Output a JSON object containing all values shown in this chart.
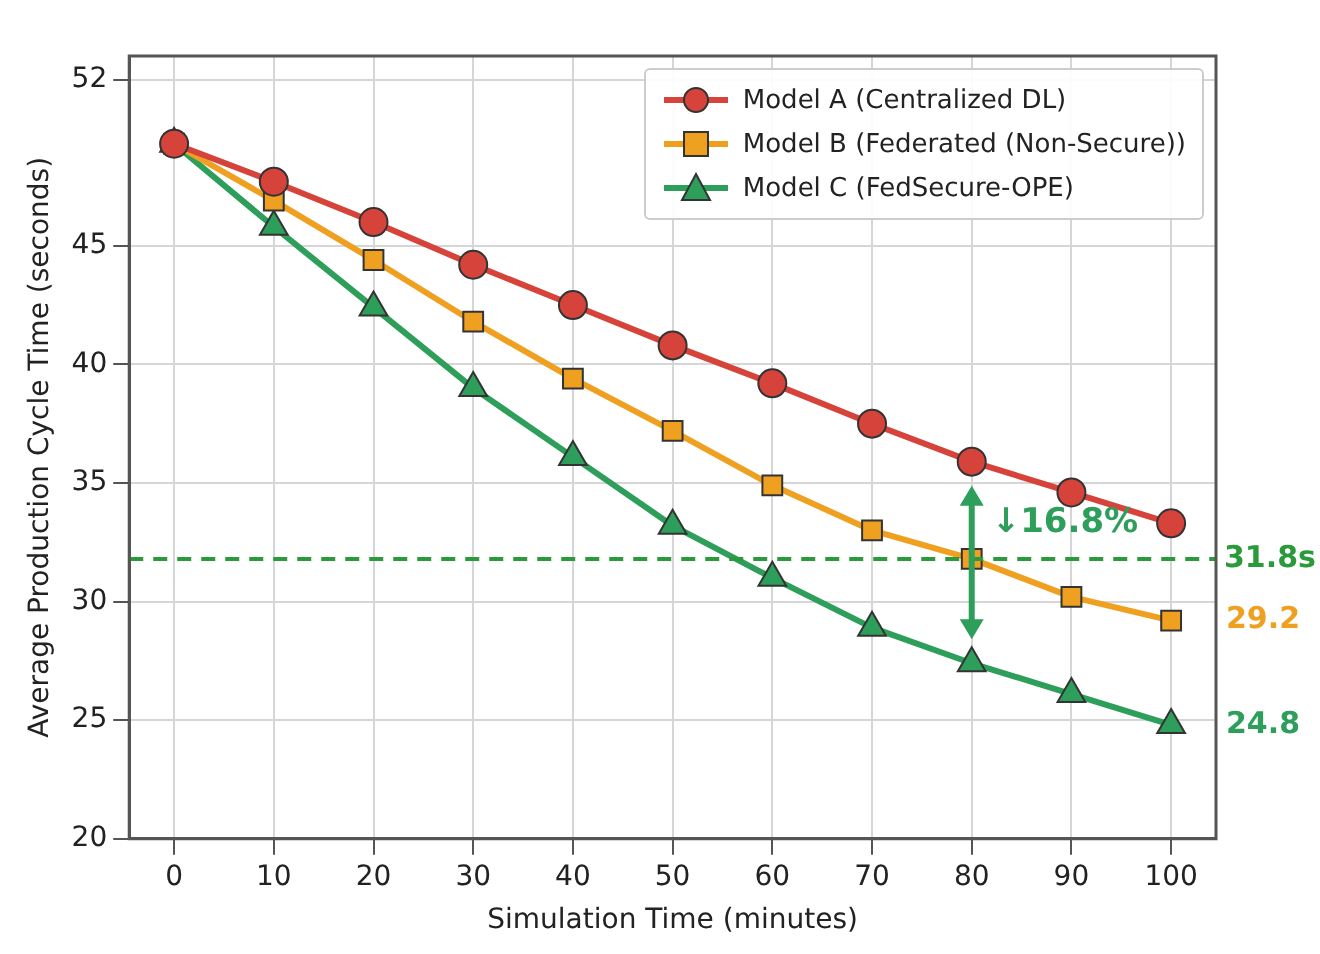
{
  "chart_data": {
    "type": "line",
    "xlabel": "Simulation Time (minutes)",
    "ylabel": "Average Production Cycle Time (seconds)",
    "x": [
      0,
      10,
      20,
      30,
      40,
      50,
      60,
      70,
      80,
      90,
      100
    ],
    "series": [
      {
        "name": "Model A (Centralized DL)",
        "color": "#d6433b",
        "marker": "circle",
        "values": [
          49.3,
          47.7,
          46.0,
          44.2,
          42.5,
          40.8,
          39.2,
          37.5,
          35.9,
          34.6,
          33.3
        ]
      },
      {
        "name": "Model B (Federated (Non-Secure))",
        "color": "#f0a020",
        "marker": "square",
        "values": [
          49.3,
          46.9,
          44.4,
          41.8,
          39.4,
          37.2,
          34.9,
          33.0,
          31.8,
          30.2,
          29.2
        ],
        "value_labels": [
          null,
          null,
          null,
          null,
          null,
          null,
          null,
          null,
          null,
          null,
          "29.2"
        ]
      },
      {
        "name": "Model C (FedSecure-OPE)",
        "color": "#2e9e5b",
        "marker": "triangle",
        "values": [
          49.3,
          45.8,
          42.4,
          39.0,
          36.1,
          33.2,
          31.0,
          28.9,
          27.4,
          26.1,
          24.8
        ],
        "value_labels": [
          null,
          null,
          null,
          null,
          null,
          null,
          null,
          null,
          null,
          null,
          "24.8"
        ]
      }
    ],
    "xlim": [
      -4.5,
      104.5
    ],
    "xticks": [
      0,
      10,
      20,
      30,
      40,
      50,
      60,
      70,
      80,
      90,
      100
    ],
    "ylim": [
      20,
      53
    ],
    "yticks": [
      20,
      25,
      30,
      35,
      40,
      45,
      52
    ],
    "ref_lines": [
      {
        "axis": "y",
        "value": 31.8,
        "label": "31.8s",
        "color": "#2a9a3a",
        "line_style": "dashed"
      }
    ],
    "annotations": [
      {
        "text": "↓16.8%",
        "x": 80,
        "y": 31.8
      }
    ],
    "grid": true,
    "legend": "top right",
    "line_style": "solid"
  }
}
